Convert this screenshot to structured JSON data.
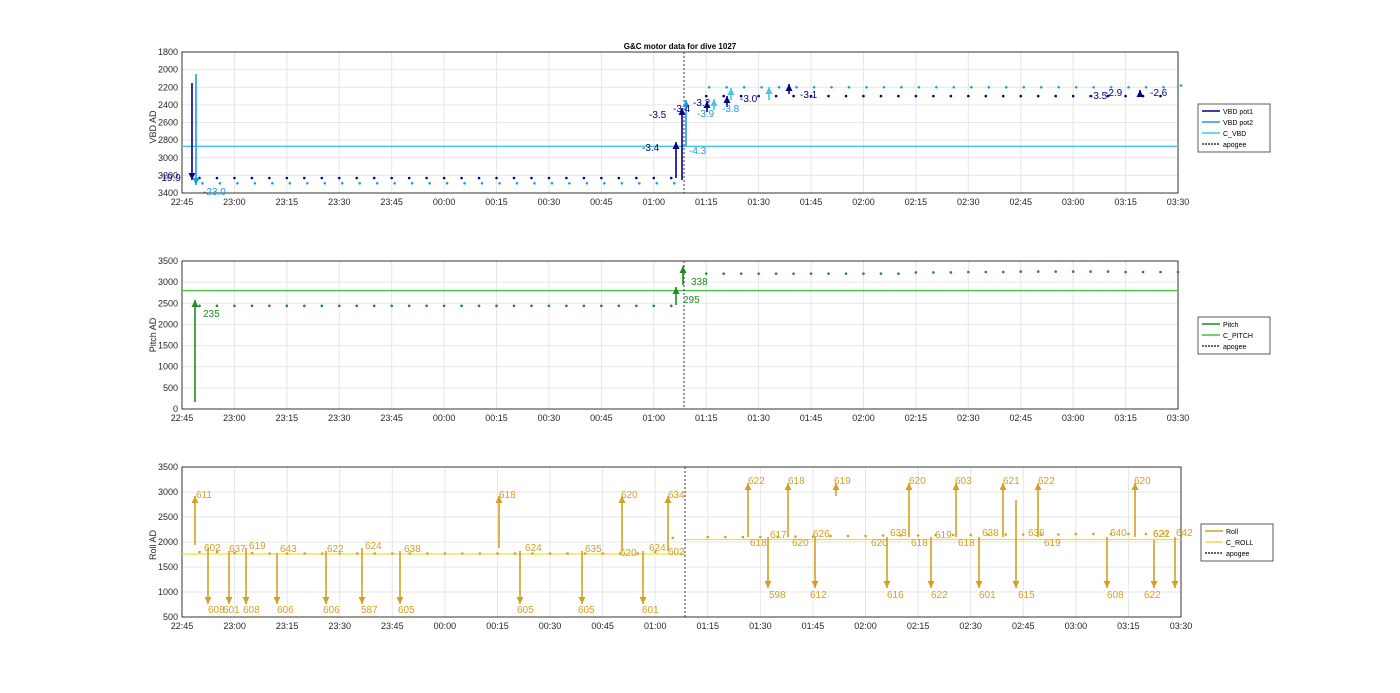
{
  "figure": {
    "title": "G&C motor data for dive 1027"
  },
  "colors": {
    "vbd_pot1": "#00008B",
    "vbd_pot2": "#1E9BE6",
    "c_vbd": "#40C8E8",
    "pitch": "#1E8C1E",
    "c_pitch": "#3CC83C",
    "roll": "#D4A020",
    "c_roll": "#EEDD44",
    "apogee": "#333333"
  },
  "x_ticks": [
    "22:45",
    "23:00",
    "23:15",
    "23:30",
    "23:45",
    "00:00",
    "00:15",
    "00:30",
    "00:45",
    "01:00",
    "01:15",
    "01:30",
    "01:45",
    "02:00",
    "02:15",
    "02:30",
    "02:45",
    "03:00",
    "03:15",
    "03:30"
  ],
  "chart_data": [
    {
      "type": "line",
      "ylabel": "VBD AD",
      "xlabel": "",
      "title": "G&C motor data for dive 1027",
      "xlim": [
        "22:45",
        "03:30"
      ],
      "ylim": [
        3400,
        1800
      ],
      "y_reversed": true,
      "y_ticks": [
        "1800",
        "2000",
        "2200",
        "2400",
        "2600",
        "2800",
        "3000",
        "3200",
        "3400"
      ],
      "grid": true,
      "legend": [
        "VBD pot1",
        "VBD pot2",
        "C_VBD",
        "apogee"
      ],
      "legend_position": "outside-right",
      "series": [
        {
          "name": "VBD pot1",
          "x": [
            "22:50",
            "22:55",
            "23:00",
            "23:05",
            "23:10",
            "23:15",
            "23:20",
            "23:25",
            "23:30",
            "23:35",
            "23:40",
            "23:45",
            "23:50",
            "23:55",
            "00:00",
            "00:05",
            "00:10",
            "00:15",
            "00:20",
            "00:25",
            "00:30",
            "00:35",
            "00:40",
            "00:45",
            "00:50",
            "00:55",
            "01:00",
            "01:05",
            "01:15",
            "01:20",
            "01:25",
            "01:30",
            "01:35",
            "01:40",
            "01:45",
            "01:50",
            "01:55",
            "02:00",
            "02:05",
            "02:10",
            "02:15",
            "02:20",
            "02:25",
            "02:30",
            "02:35",
            "02:40",
            "02:45",
            "02:50",
            "02:55",
            "03:00",
            "03:05",
            "03:10",
            "03:15",
            "03:20",
            "03:25"
          ],
          "values": [
            3230,
            3230,
            3230,
            3230,
            3230,
            3230,
            3230,
            3230,
            3230,
            3230,
            3230,
            3230,
            3230,
            3230,
            3230,
            3230,
            3230,
            3230,
            3230,
            3230,
            3230,
            3230,
            3230,
            3230,
            3230,
            3230,
            3230,
            3230,
            2300,
            2300,
            2300,
            2300,
            2300,
            2300,
            2300,
            2300,
            2300,
            2300,
            2300,
            2300,
            2300,
            2300,
            2300,
            2300,
            2300,
            2300,
            2300,
            2300,
            2300,
            2300,
            2300,
            2300,
            2300,
            2300,
            2300
          ]
        },
        {
          "name": "VBD pot2",
          "x": [
            "22:50",
            "22:55",
            "23:00",
            "23:05",
            "23:10",
            "23:15",
            "23:20",
            "23:25",
            "23:30",
            "23:35",
            "23:40",
            "23:45",
            "23:50",
            "23:55",
            "00:00",
            "00:05",
            "00:10",
            "00:15",
            "00:20",
            "00:25",
            "00:30",
            "00:35",
            "00:40",
            "00:45",
            "00:50",
            "00:55",
            "01:00",
            "01:05",
            "01:15",
            "01:20",
            "01:25",
            "01:30",
            "01:35",
            "01:40",
            "01:45",
            "01:50",
            "01:55",
            "02:00",
            "02:05",
            "02:10",
            "02:15",
            "02:20",
            "02:25",
            "02:30",
            "02:35",
            "02:40",
            "02:45",
            "02:50",
            "02:55",
            "03:00",
            "03:05",
            "03:10",
            "03:15",
            "03:20",
            "03:25",
            "03:30"
          ],
          "values": [
            3290,
            3290,
            3290,
            3290,
            3290,
            3290,
            3290,
            3290,
            3290,
            3290,
            3290,
            3290,
            3290,
            3290,
            3290,
            3290,
            3290,
            3290,
            3290,
            3290,
            3290,
            3290,
            3290,
            3290,
            3290,
            3290,
            3290,
            3290,
            2200,
            2200,
            2200,
            2200,
            2200,
            2200,
            2200,
            2200,
            2200,
            2200,
            2200,
            2200,
            2200,
            2200,
            2200,
            2200,
            2200,
            2200,
            2200,
            2200,
            2200,
            2200,
            2200,
            2200,
            2200,
            2200,
            2200,
            2180
          ]
        },
        {
          "name": "C_VBD",
          "constant": 2870
        },
        {
          "name": "apogee",
          "x_at": "01:08"
        }
      ],
      "annotations": [
        "-19.9",
        "-23.0",
        "-3.4",
        "-4.3",
        "-3.5",
        "-3.4",
        "-3.2",
        "-3.9",
        "-3.8",
        "-3.0",
        "-3.1",
        "-3.5",
        "-2.9",
        "-2.6"
      ]
    },
    {
      "type": "line",
      "ylabel": "Pitch AD",
      "xlabel": "",
      "xlim": [
        "22:45",
        "03:30"
      ],
      "ylim": [
        0,
        3500
      ],
      "y_ticks": [
        "0",
        "500",
        "1000",
        "1500",
        "2000",
        "2500",
        "3000",
        "3500"
      ],
      "grid": true,
      "legend": [
        "Pitch",
        "C_PITCH",
        "apogee"
      ],
      "legend_position": "outside-right",
      "series": [
        {
          "name": "Pitch",
          "x": [
            "22:50",
            "22:55",
            "23:00",
            "23:05",
            "23:10",
            "23:15",
            "23:20",
            "23:25",
            "23:30",
            "23:35",
            "23:40",
            "23:45",
            "23:50",
            "23:55",
            "00:00",
            "00:05",
            "00:10",
            "00:15",
            "00:20",
            "00:25",
            "00:30",
            "00:35",
            "00:40",
            "00:45",
            "00:50",
            "00:55",
            "01:00",
            "01:05",
            "01:15",
            "01:20",
            "01:25",
            "01:30",
            "01:35",
            "01:40",
            "01:45",
            "01:50",
            "01:55",
            "02:00",
            "02:05",
            "02:10",
            "02:15",
            "02:20",
            "02:25",
            "02:30",
            "02:35",
            "02:40",
            "02:45",
            "02:50",
            "02:55",
            "03:00",
            "03:05",
            "03:10",
            "03:15",
            "03:20",
            "03:25",
            "03:30"
          ],
          "values": [
            2440,
            2440,
            2440,
            2440,
            2440,
            2440,
            2440,
            2440,
            2440,
            2440,
            2440,
            2440,
            2440,
            2440,
            2440,
            2440,
            2440,
            2440,
            2440,
            2440,
            2440,
            2440,
            2440,
            2440,
            2440,
            2440,
            2440,
            2440,
            3200,
            3200,
            3200,
            3200,
            3200,
            3200,
            3200,
            3200,
            3200,
            3200,
            3200,
            3200,
            3230,
            3230,
            3230,
            3240,
            3240,
            3240,
            3250,
            3250,
            3250,
            3250,
            3250,
            3250,
            3240,
            3240,
            3240,
            3240
          ]
        },
        {
          "name": "C_PITCH",
          "constant": 2800
        },
        {
          "name": "apogee",
          "x_at": "01:08"
        }
      ],
      "annotations": [
        "235",
        "295",
        "338"
      ]
    },
    {
      "type": "line",
      "ylabel": "Roll AD",
      "xlabel": "",
      "xlim": [
        "22:45",
        "03:30"
      ],
      "ylim": [
        500,
        3500
      ],
      "y_ticks": [
        "500",
        "1000",
        "1500",
        "2000",
        "2500",
        "3000",
        "3500"
      ],
      "grid": true,
      "legend": [
        "Roll",
        "C_ROLL",
        "apogee"
      ],
      "legend_position": "outside-right",
      "series": [
        {
          "name": "Roll",
          "x": [
            "22:50",
            "22:55",
            "23:00",
            "23:05",
            "23:10",
            "23:15",
            "23:20",
            "23:25",
            "23:30",
            "23:35",
            "23:40",
            "23:45",
            "23:50",
            "23:55",
            "00:00",
            "00:05",
            "00:10",
            "00:15",
            "00:20",
            "00:25",
            "00:30",
            "00:35",
            "00:40",
            "00:45",
            "00:50",
            "00:55",
            "01:00",
            "01:05",
            "01:15",
            "01:20",
            "01:25",
            "01:30",
            "01:35",
            "01:40",
            "01:45",
            "01:50",
            "01:55",
            "02:00",
            "02:05",
            "02:10",
            "02:15",
            "02:20",
            "02:25",
            "02:30",
            "02:35",
            "02:40",
            "02:45",
            "02:50",
            "02:55",
            "03:00",
            "03:05",
            "03:10",
            "03:15",
            "03:20",
            "03:25"
          ],
          "values": [
            1800,
            1800,
            1780,
            1780,
            1770,
            1770,
            1770,
            1770,
            1770,
            1770,
            1770,
            1770,
            1770,
            1770,
            1770,
            1770,
            1770,
            1770,
            1770,
            1770,
            1770,
            1770,
            1770,
            1770,
            1770,
            1770,
            1800,
            2080,
            2100,
            2100,
            2100,
            2100,
            2110,
            2110,
            2110,
            2120,
            2120,
            2120,
            2130,
            2130,
            2130,
            2140,
            2140,
            2140,
            2150,
            2150,
            2150,
            2150,
            2150,
            2160,
            2160,
            2160,
            2160,
            2160,
            2170
          ]
        },
        {
          "name": "C_ROLL",
          "before_apogee": 1760,
          "after_apogee": 2050
        },
        {
          "name": "apogee",
          "x_at": "01:08"
        }
      ],
      "annotations": [
        "611",
        "608",
        "601",
        "608",
        "606",
        "606",
        "587",
        "605",
        "605",
        "605",
        "601",
        "602",
        "602",
        "637",
        "619",
        "643",
        "622",
        "624",
        "638",
        "618",
        "624",
        "635",
        "620",
        "624",
        "634",
        "622",
        "618",
        "626",
        "619",
        "620",
        "603",
        "621",
        "622",
        "620",
        "617",
        "638",
        "619",
        "638",
        "636",
        "640",
        "621",
        "642",
        "622",
        "620",
        "618",
        "620",
        "620",
        "618",
        "618",
        "619",
        "598",
        "612",
        "616",
        "622",
        "601",
        "615",
        "608",
        "622"
      ]
    }
  ]
}
